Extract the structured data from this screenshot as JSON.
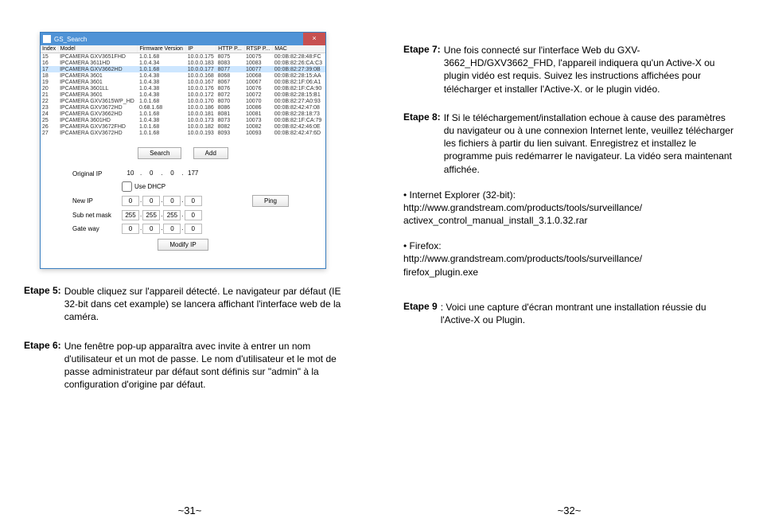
{
  "window": {
    "title": "GS_Search",
    "close_glyph": "×",
    "columns": [
      "Index",
      "Model",
      "Firmware Version",
      "IP",
      "HTTP P...",
      "RTSP P...",
      "MAC"
    ],
    "rows": [
      [
        "15",
        "IPCAMERA GXV3651FHD",
        "1.0.1.68",
        "10.0.0.175",
        "8075",
        "10075",
        "00:0B:82:28:48:FC"
      ],
      [
        "16",
        "IPCAMERA 3611HD",
        "1.0.4.34",
        "10.0.0.183",
        "8083",
        "10083",
        "00:0B:82:26:CA:C3"
      ],
      [
        "17",
        "IPCAMERA GXV3662HD",
        "1.0.1.68",
        "10.0.0.177",
        "8077",
        "10077",
        "00:0B:82:27:39:0B"
      ],
      [
        "18",
        "IPCAMERA 3601",
        "1.0.4.38",
        "10.0.0.168",
        "8068",
        "10068",
        "00:0B:82:28:15:AA"
      ],
      [
        "19",
        "IPCAMERA 3601",
        "1.0.4.38",
        "10.0.0.167",
        "8067",
        "10067",
        "00:0B:82:1F:06:A1"
      ],
      [
        "20",
        "IPCAMERA 3601LL",
        "1.0.4.38",
        "10.0.0.176",
        "8076",
        "10076",
        "00:0B:82:1F:CA:90"
      ],
      [
        "21",
        "IPCAMERA 3601",
        "1.0.4.38",
        "10.0.0.172",
        "8072",
        "10072",
        "00:0B:82:28:15:B1"
      ],
      [
        "22",
        "IPCAMERA GXV3615WP_HD",
        "1.0.1.68",
        "10.0.0.170",
        "8070",
        "10070",
        "00:0B:82:27:A0:93"
      ],
      [
        "23",
        "IPCAMERA GXV3672HD",
        "0.68.1.68",
        "10.0.0.186",
        "8086",
        "10086",
        "00:0B:82:42:47:08"
      ],
      [
        "24",
        "IPCAMERA GXV3662HD",
        "1.0.1.68",
        "10.0.0.181",
        "8081",
        "10081",
        "00:0B:82:28:18:73"
      ],
      [
        "25",
        "IPCAMERA 3601HD",
        "1.0.4.38",
        "10.0.0.173",
        "8073",
        "10073",
        "00:0B:82:1F:CA:79"
      ],
      [
        "26",
        "IPCAMERA GXV3672FHD",
        "1.0.1.68",
        "10.0.0.182",
        "8082",
        "10082",
        "00:0B:82:42:46:0E"
      ],
      [
        "27",
        "IPCAMERA GXV3672HD",
        "1.0.1.68",
        "10.0.0.193",
        "8093",
        "10093",
        "00:0B:82:42:47:6D"
      ]
    ],
    "btn_search": "Search",
    "btn_add": "Add",
    "btn_ping": "Ping",
    "btn_modify": "Modify IP",
    "lab_orig": "Original IP",
    "lab_dhcp": "Use DHCP",
    "lab_newip": "New IP",
    "lab_subnet": "Sub net mask",
    "lab_gateway": "Gate way",
    "orig_ip": [
      "10",
      "0",
      "0",
      "177"
    ],
    "new_ip": [
      "0",
      "0",
      "0",
      "0"
    ],
    "subnet": [
      "255",
      "255",
      "255",
      "0"
    ],
    "gateway": [
      "0",
      "0",
      "0",
      "0"
    ]
  },
  "steps": {
    "s5_label": "Etape 5:",
    "s5_body": "Double cliquez sur l'appareil détecté. Le navigateur par défaut (IE 32-bit dans cet example) se lancera affichant l'interface web de la caméra.",
    "s6_label": "Etape 6:",
    "s6_body": "Une fenêtre pop-up apparaîtra avec invite à entrer un nom d'utilisateur et un mot de passe. Le nom d'utilisateur et le mot de passe administrateur par défaut sont définis sur \"admin\" à la configuration d'origine par défaut.",
    "s7_label": "Etape 7:",
    "s7_body": "Une fois connecté sur l'interface Web du GXV-3662_HD/GXV3662_FHD, l'appareil indiquera qu'un Active-X ou plugin vidéo est requis. Suivez les instructions affichées pour télécharger et installer l'Active-X. or le plugin vidéo.",
    "s8_label": "Etape 8:",
    "s8_body": "If Si le téléchargement/installation echoue à cause des paramètres du navigateur ou à une connexion Internet lente, veuillez télécharger les fichiers à partir du lien suivant. Enregistrez et installez le programme puis redémarrer le navigateur. La vidéo sera maintenant affichée.",
    "s9_label": "Etape 9",
    "s9_body": ": Voici une capture d'écran montrant une installation réussie du l'Active-X ou Plugin."
  },
  "links": {
    "ie_label": "• Internet Explorer (32-bit):",
    "ie_url1": "http://www.grandstream.com/products/tools/surveillance/",
    "ie_url2": "activex_control_manual_install_3.1.0.32.rar",
    "ff_label": "• Firefox:",
    "ff_url1": "http://www.grandstream.com/products/tools/surveillance/",
    "ff_url2": "firefox_plugin.exe"
  },
  "page_numbers": {
    "left": "~31~",
    "right": "~32~"
  }
}
